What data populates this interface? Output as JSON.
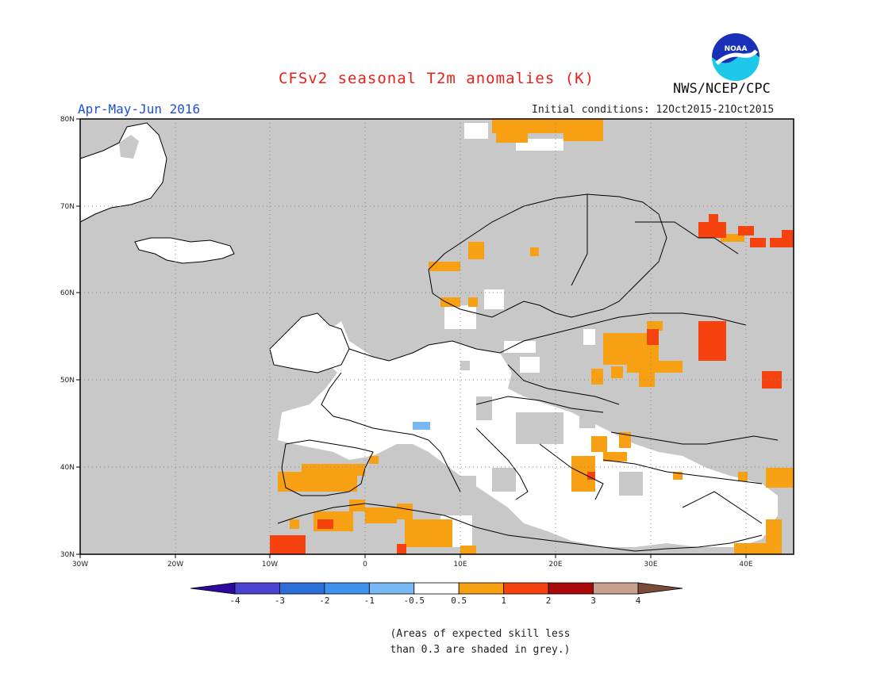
{
  "header": {
    "title": "CFSv2 seasonal T2m anomalies (K)",
    "season": "Apr-May-Jun 2016",
    "initial_conditions": "Initial conditions: 12Oct2015-21Oct2015",
    "agency": "NWS/NCEP/CPC",
    "logo_text": "NOAA"
  },
  "map": {
    "lon_ticks": [
      "30W",
      "20W",
      "10W",
      "0",
      "10E",
      "20E",
      "30E",
      "40E"
    ],
    "lat_ticks": [
      "80N",
      "70N",
      "60N",
      "50N",
      "40N",
      "30N"
    ],
    "extent": {
      "lon": [
        -30,
        45
      ],
      "lat": [
        30,
        80
      ]
    },
    "land_outline": "no_skill_grey"
  },
  "colorbar": {
    "labels": [
      "-4",
      "-3",
      "-2",
      "-1",
      "-0.5",
      "0.5",
      "1",
      "2",
      "3",
      "4"
    ],
    "colors": [
      "#2d0a9e",
      "#4b43d0",
      "#2c6fd8",
      "#3f93ee",
      "#7ab8f5",
      "#ffffff",
      "#f7a013",
      "#f6420e",
      "#a80808",
      "#c8a090",
      "#7a4a3a"
    ]
  },
  "note": {
    "line1": "(Areas of expected skill less",
    "line2": "than 0.3 are shaded in grey.)"
  },
  "colors": {
    "no_skill": "#c8c8c8",
    "near_normal": "#ffffff",
    "warm1": "#f7a013",
    "warm2": "#f6420e",
    "cool": "#7ab8f5"
  }
}
